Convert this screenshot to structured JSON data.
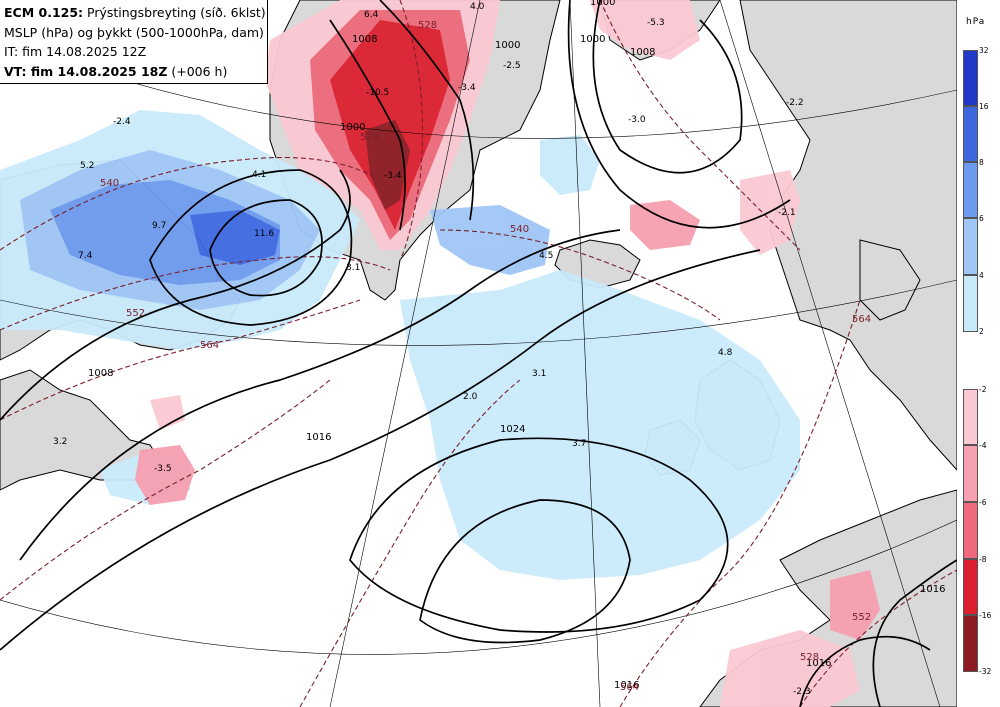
{
  "header": {
    "model": "ECM 0.125:",
    "title_rest": " Prýstingsbreyting (síð. 6klst)",
    "line2": "MSLP (hPa) og þykkt (500-1000hPa, dam)",
    "line3": "IT: fim 14.08.2025 12Z",
    "vt_label": "VT: fim 14.08.2025 18Z",
    "vt_suffix": " (+006 h)"
  },
  "legend": {
    "unit": "hPa",
    "falling": {
      "ticks": [
        "32",
        "16",
        "8",
        "6",
        "4",
        "2"
      ],
      "colors": [
        "#2238c8",
        "#3d68e0",
        "#6c9aee",
        "#9fc6f6",
        "#c9eafb"
      ]
    },
    "rising": {
      "ticks": [
        "-2",
        "-4",
        "-6",
        "-8",
        "-16",
        "-32"
      ],
      "colors": [
        "#fbc9d3",
        "#f6a0b0",
        "#ee6a7c",
        "#dc2030",
        "#8e1a22"
      ]
    }
  },
  "colors": {
    "land": "#d9d9d9",
    "sea": "#ffffff",
    "isobar": "#000000",
    "thickness": "#7a1f2b"
  },
  "map": {
    "isobar_labels": [
      "1008",
      "1000",
      "1024",
      "1016",
      "1008",
      "1000",
      "1008",
      "1000",
      "1016",
      "1016",
      "1016",
      "1000"
    ],
    "thickness_labels": [
      "540",
      "552",
      "564",
      "528",
      "540",
      "528",
      "564",
      "564",
      "552",
      "528"
    ],
    "values": [
      "6.4",
      "4.0",
      "-5.3",
      "-3.4",
      "-2.5",
      "-10.5",
      "-2.4",
      "-3.4",
      "-2.2",
      "5.2",
      "9.7",
      "11.6",
      "7.4",
      "4.1",
      "3.1",
      "4.5",
      "-3.0",
      "-2.1",
      "4.8",
      "3.1",
      "2.0",
      "3.7",
      "3.2",
      "-3.5",
      "-2.3"
    ]
  }
}
